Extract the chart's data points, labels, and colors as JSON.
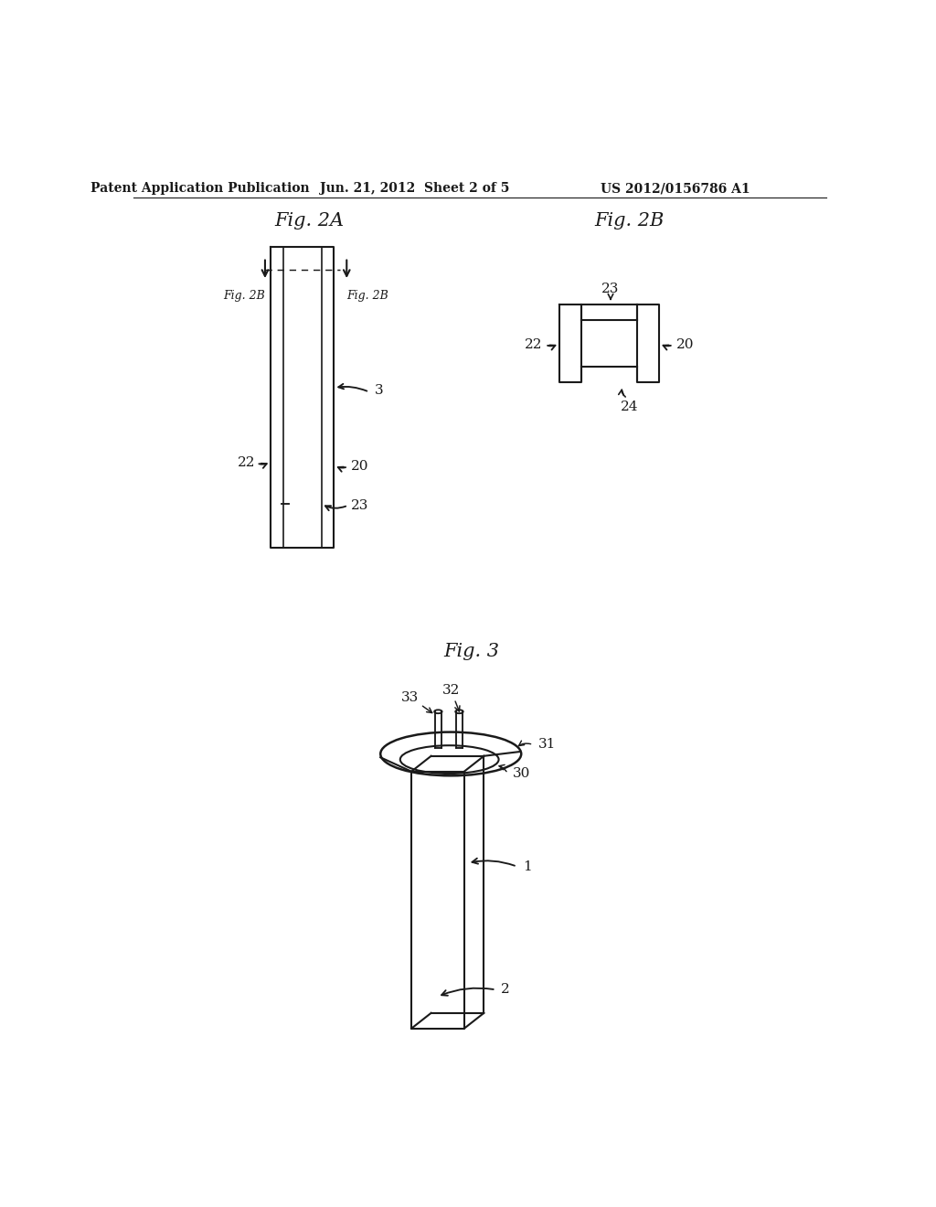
{
  "background_color": "#ffffff",
  "header_text": "Patent Application Publication",
  "header_date": "Jun. 21, 2012  Sheet 2 of 5",
  "header_patent": "US 2012/0156786 A1",
  "fig2a_title": "Fig. 2A",
  "fig2b_title": "Fig. 2B",
  "fig3_title": "Fig. 3",
  "line_color": "#1a1a1a",
  "line_width": 1.5,
  "label_fontsize": 11,
  "title_fontsize": 15,
  "header_fontsize": 10
}
